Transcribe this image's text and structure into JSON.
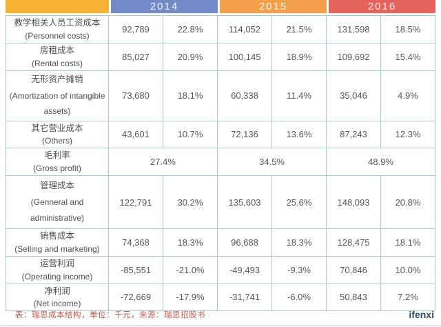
{
  "chart_data": {
    "type": "table",
    "years": [
      "2014",
      "2015",
      "2016"
    ],
    "rows": [
      {
        "zh": "教学相关人员工资成本",
        "en": "(Personnel costs)",
        "merged": false,
        "values": [
          "92,789",
          "22.8%",
          "114,052",
          "21.5%",
          "131,598",
          "18.5%"
        ]
      },
      {
        "zh": "房租成本",
        "en": "(Rental costs)",
        "merged": false,
        "values": [
          "85,027",
          "20.9%",
          "100,145",
          "18.9%",
          "109,692",
          "15.4%"
        ]
      },
      {
        "zh": "无形资产摊销",
        "en": "(Amortization of intangible assets)",
        "merged": false,
        "values": [
          "73,680",
          "18.1%",
          "60,338",
          "11.4%",
          "35,046",
          "4.9%"
        ]
      },
      {
        "zh": "其它营业成本",
        "en": "(Others)",
        "merged": false,
        "values": [
          "43,601",
          "10.7%",
          "72,136",
          "13.6%",
          "87,243",
          "12.3%"
        ]
      },
      {
        "zh": "毛利率",
        "en": "(Gross profit)",
        "merged": true,
        "values": [
          "27.4%",
          "34.5%",
          "48.9%"
        ]
      },
      {
        "zh": "管理成本",
        "en": "(Genneral and administrative)",
        "merged": false,
        "values": [
          "122,791",
          "30.2%",
          "135,603",
          "25.6%",
          "148,093",
          "20.8%"
        ]
      },
      {
        "zh": "销售成本",
        "en": "(Selling and marketing)",
        "merged": false,
        "values": [
          "74,368",
          "18.3%",
          "96,688",
          "18.3%",
          "128,475",
          "18.1%"
        ]
      },
      {
        "zh": "运营利润",
        "en": "(Operating income)",
        "merged": false,
        "values": [
          "-85,551",
          "-21.0%",
          "-49,493",
          "-9.3%",
          "70,846",
          "10.0%"
        ]
      },
      {
        "zh": "净利润",
        "en": "(Net income)",
        "merged": false,
        "values": [
          "-72,669",
          "-17.9%",
          "-31,741",
          "-6.0%",
          "50,843",
          "7.2%"
        ]
      }
    ]
  },
  "styles": {
    "corner_color": "#F6B335",
    "year_colors": [
      "#7489C8",
      "#F4A04B",
      "#E6625D"
    ],
    "border_color": "#A9C9D3",
    "note_color": "#C9544A",
    "logo_color": "#2C4A6E"
  },
  "footer": {
    "note": "表：瑞思成本结构，单位：千元，来源：瑞思招股书",
    "logo": "ifenxi"
  }
}
